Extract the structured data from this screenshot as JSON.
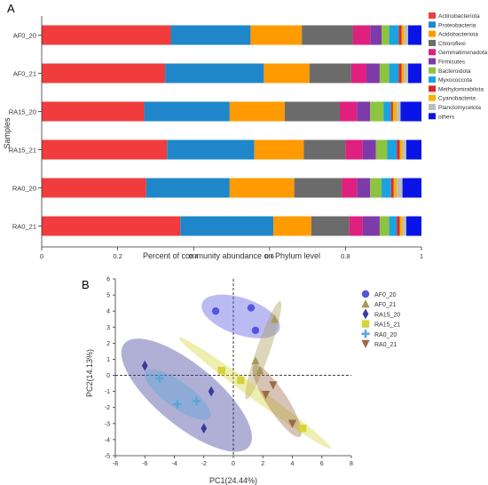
{
  "chart_data": [
    {
      "panel_label": "A",
      "type": "bar",
      "orientation": "horizontal",
      "stacked": true,
      "categories": [
        "AF0_20",
        "AF0_21",
        "RA15_20",
        "RA15_21",
        "RA0_20",
        "RA0_21"
      ],
      "series": [
        {
          "name": "Actinobacteriota",
          "color": "#f03c3c",
          "values": [
            0.34,
            0.325,
            0.27,
            0.33,
            0.275,
            0.365
          ]
        },
        {
          "name": "Proteobacteria",
          "color": "#1f87c9",
          "values": [
            0.21,
            0.26,
            0.225,
            0.23,
            0.22,
            0.245
          ]
        },
        {
          "name": "Acidobacteriota",
          "color": "#ff9a00",
          "values": [
            0.135,
            0.12,
            0.145,
            0.13,
            0.17,
            0.1
          ]
        },
        {
          "name": "Chloroflexi",
          "color": "#6b6b6b",
          "values": [
            0.135,
            0.11,
            0.145,
            0.11,
            0.125,
            0.1
          ]
        },
        {
          "name": "Gemmatimonadota",
          "color": "#e0207e",
          "values": [
            0.045,
            0.04,
            0.045,
            0.045,
            0.04,
            0.035
          ]
        },
        {
          "name": "Firmicutes",
          "color": "#7d3aa8",
          "values": [
            0.03,
            0.035,
            0.035,
            0.035,
            0.035,
            0.045
          ]
        },
        {
          "name": "Bacteroidota",
          "color": "#8cc43f",
          "values": [
            0.02,
            0.025,
            0.035,
            0.03,
            0.03,
            0.025
          ]
        },
        {
          "name": "Myxococcota",
          "color": "#1aa3e0",
          "values": [
            0.025,
            0.025,
            0.02,
            0.025,
            0.025,
            0.02
          ]
        },
        {
          "name": "Methylomirabilota",
          "color": "#d62b2b",
          "values": [
            0.008,
            0.008,
            0.005,
            0.008,
            0.007,
            0.008
          ]
        },
        {
          "name": "Cyanobacteria",
          "color": "#f5b400",
          "values": [
            0.007,
            0.007,
            0.01,
            0.007,
            0.008,
            0.007
          ]
        },
        {
          "name": "Planctomycetota",
          "color": "#bdbdbd",
          "values": [
            0.01,
            0.01,
            0.01,
            0.01,
            0.015,
            0.01
          ]
        },
        {
          "name": "others",
          "color": "#0a14e6",
          "values": [
            0.035,
            0.035,
            0.055,
            0.04,
            0.05,
            0.04
          ]
        }
      ],
      "xlabel": "Percent of community abundance on Phylum level",
      "ylabel": "Samples",
      "xlim": [
        0,
        1
      ],
      "xticks": [
        "0",
        "0.2",
        "0.4",
        "0.6",
        "0.8",
        "1"
      ],
      "legend_position": "right"
    },
    {
      "panel_label": "B",
      "type": "scatter",
      "xlabel": "PC1(24.44%)",
      "ylabel": "PC2(14.13%)",
      "xlim": [
        -8,
        8
      ],
      "ylim": [
        -5,
        6
      ],
      "xticks": [
        "-8",
        "-6",
        "-4",
        "-2",
        "0",
        "2",
        "4",
        "6",
        "8"
      ],
      "yticks": [
        "6",
        "5",
        "4",
        "3",
        "2",
        "1",
        "0",
        "-1",
        "-2",
        "-3",
        "-4",
        "-5"
      ],
      "legend_position": "right",
      "series": [
        {
          "name": "AF0_20",
          "color": "#5454e0",
          "marker": "circle",
          "x": [
            -1.2,
            1.2,
            1.5
          ],
          "y": [
            4.0,
            4.2,
            2.8
          ]
        },
        {
          "name": "AF0_21",
          "color": "#a89a55",
          "marker": "triangle-up",
          "x": [
            2.8,
            1.5,
            1.8
          ],
          "y": [
            3.5,
            0.9,
            0.3
          ]
        },
        {
          "name": "RA15_20",
          "color": "#3a3a9a",
          "marker": "diamond",
          "x": [
            -6.0,
            -1.5,
            -2.0
          ],
          "y": [
            0.6,
            -1.0,
            -3.3
          ]
        },
        {
          "name": "RA15_21",
          "color": "#d4d43a",
          "marker": "square",
          "x": [
            -0.8,
            0.5,
            4.7
          ],
          "y": [
            0.3,
            -0.3,
            -3.3
          ]
        },
        {
          "name": "RA0_20",
          "color": "#5aa6d4",
          "marker": "plus",
          "x": [
            -5.0,
            -3.8,
            -2.5
          ],
          "y": [
            -0.2,
            -1.8,
            -1.6
          ]
        },
        {
          "name": "RA0_21",
          "color": "#9a6b4a",
          "marker": "triangle-down",
          "x": [
            2.2,
            2.7,
            4.0
          ],
          "y": [
            -1.2,
            -0.6,
            -3.0
          ]
        }
      ]
    }
  ]
}
